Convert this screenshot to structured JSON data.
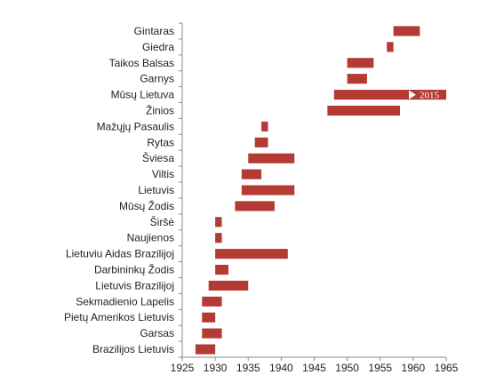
{
  "chart_data": {
    "type": "bar",
    "orientation": "horizontal",
    "subtype": "gantt",
    "title": "",
    "xlabel": "",
    "ylabel": "",
    "xlim": [
      1925,
      1965
    ],
    "xticks": [
      1925,
      1930,
      1935,
      1940,
      1945,
      1950,
      1955,
      1960,
      1965
    ],
    "grid": false,
    "bar_color": "#b43a34",
    "categories": [
      "Gintaras",
      "Giedra",
      "Taikos Balsas",
      "Garnys",
      "Mūsų Lietuva",
      "Žinios",
      "Mažųjų Pasaulis",
      "Rytas",
      "Šviesa",
      "Viltis",
      "Lietuvis",
      "Mūsų Žodis",
      "Širšė",
      "Naujienos",
      "Lietuviu Aidas Brazilijoj",
      "Darbininkų Žodis",
      "Lietuvis  Brazilijoj",
      "Sekmadienio Lapelis",
      "Pietų Amerikos Lietuvis",
      "Garsas",
      "Brazilijos Lietuvis"
    ],
    "intervals": [
      {
        "start": 1957,
        "end": 1961
      },
      {
        "start": 1956,
        "end": 1957
      },
      {
        "start": 1950,
        "end": 1954
      },
      {
        "start": 1950,
        "end": 1953
      },
      {
        "start": 1948,
        "end": 1965,
        "note": "2015"
      },
      {
        "start": 1947,
        "end": 1958
      },
      {
        "start": 1937,
        "end": 1938
      },
      {
        "start": 1936,
        "end": 1938
      },
      {
        "start": 1935,
        "end": 1942
      },
      {
        "start": 1934,
        "end": 1937
      },
      {
        "start": 1934,
        "end": 1942
      },
      {
        "start": 1933,
        "end": 1939
      },
      {
        "start": 1930,
        "end": 1931
      },
      {
        "start": 1930,
        "end": 1931
      },
      {
        "start": 1930,
        "end": 1941
      },
      {
        "start": 1930,
        "end": 1932
      },
      {
        "start": 1929,
        "end": 1935
      },
      {
        "start": 1928,
        "end": 1931
      },
      {
        "start": 1928,
        "end": 1930
      },
      {
        "start": 1928,
        "end": 1931
      },
      {
        "start": 1927,
        "end": 1930
      }
    ]
  }
}
